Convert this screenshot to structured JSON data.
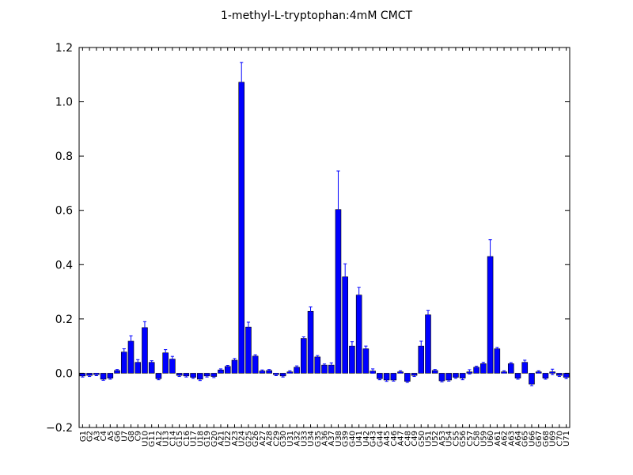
{
  "chart_data": {
    "type": "bar",
    "title": "1-methyl-L-tryptophan:4mM  CMCT",
    "xlabel": "",
    "ylabel": "",
    "ylim": [
      -0.2,
      1.2
    ],
    "yticks": [
      -0.2,
      0.0,
      0.2,
      0.4,
      0.6,
      0.8,
      1.0,
      1.2
    ],
    "ytick_labels": [
      "−0.2",
      "0.0",
      "0.2",
      "0.4",
      "0.6",
      "0.8",
      "1.0",
      "1.2"
    ],
    "bar_color": "#0000ff",
    "error_color": "#0000ff",
    "categories": [
      "G1",
      "G2",
      "A3",
      "C4",
      "A5",
      "G6",
      "U7",
      "G8",
      "C9",
      "U10",
      "G11",
      "A12",
      "U13",
      "C14",
      "G15",
      "C16",
      "U17",
      "U18",
      "G19",
      "G20",
      "A21",
      "U22",
      "A23",
      "U24",
      "G25",
      "G26",
      "A27",
      "A28",
      "C29",
      "G30",
      "U31",
      "A32",
      "U33",
      "U34",
      "G35",
      "A36",
      "A37",
      "U38",
      "G39",
      "G40",
      "U41",
      "U42",
      "G43",
      "G44",
      "A45",
      "C46",
      "A47",
      "C48",
      "C49",
      "G50",
      "U51",
      "U52",
      "A53",
      "U54",
      "C55",
      "G56",
      "C57",
      "C58",
      "U59",
      "U60",
      "A61",
      "A62",
      "A63",
      "A64",
      "G65",
      "U66",
      "G67",
      "G68",
      "U69",
      "C70",
      "U71"
    ],
    "values": [
      -0.01,
      -0.008,
      -0.005,
      -0.022,
      -0.018,
      0.01,
      0.078,
      0.118,
      0.04,
      0.168,
      0.04,
      -0.02,
      0.075,
      0.052,
      -0.008,
      -0.01,
      -0.015,
      -0.022,
      -0.01,
      -0.012,
      0.012,
      0.025,
      0.048,
      1.072,
      0.17,
      0.063,
      0.008,
      0.01,
      -0.005,
      -0.01,
      0.005,
      0.022,
      0.128,
      0.228,
      0.06,
      0.03,
      0.03,
      0.603,
      0.355,
      0.1,
      0.288,
      0.09,
      0.008,
      -0.02,
      -0.025,
      -0.025,
      0.005,
      -0.03,
      -0.008,
      0.1,
      0.215,
      0.01,
      -0.028,
      -0.025,
      -0.015,
      -0.018,
      0.005,
      0.022,
      0.035,
      0.43,
      0.09,
      0.005,
      0.035,
      -0.018,
      0.04,
      -0.04,
      0.005,
      -0.018,
      0.005,
      -0.008,
      -0.015
    ],
    "errors": [
      0.004,
      0.004,
      0.004,
      0.004,
      0.004,
      0.004,
      0.012,
      0.02,
      0.01,
      0.022,
      0.006,
      0.004,
      0.012,
      0.01,
      0.004,
      0.004,
      0.004,
      0.005,
      0.004,
      0.004,
      0.004,
      0.004,
      0.006,
      0.073,
      0.018,
      0.005,
      0.004,
      0.004,
      0.004,
      0.004,
      0.004,
      0.005,
      0.006,
      0.016,
      0.005,
      0.004,
      0.008,
      0.142,
      0.048,
      0.016,
      0.028,
      0.01,
      0.008,
      0.004,
      0.005,
      0.004,
      0.004,
      0.004,
      0.004,
      0.018,
      0.016,
      0.004,
      0.004,
      0.004,
      0.004,
      0.006,
      0.008,
      0.004,
      0.005,
      0.062,
      0.005,
      0.004,
      0.004,
      0.004,
      0.008,
      0.006,
      0.004,
      0.004,
      0.01,
      0.004,
      0.005
    ]
  }
}
